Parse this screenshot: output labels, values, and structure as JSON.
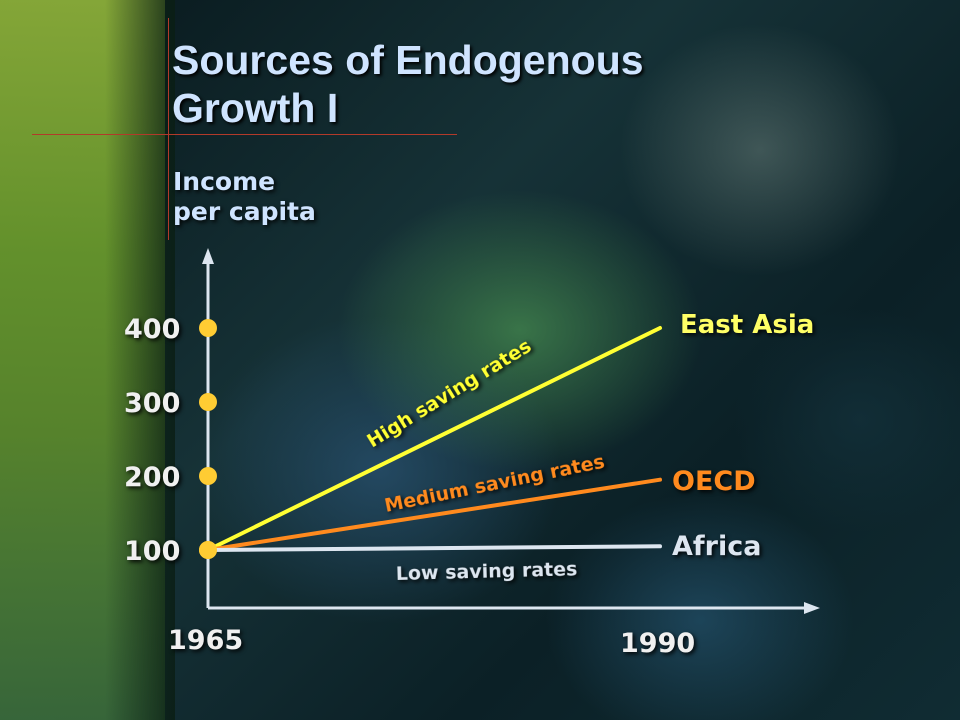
{
  "slide": {
    "title_line1": "Sources of Endogenous",
    "title_line2": "Growth I"
  },
  "chart_data": {
    "type": "line",
    "title": "Sources of Endogenous Growth I",
    "ylabel": [
      "Income",
      "per capita"
    ],
    "x_ticks": [
      "1965",
      "1990"
    ],
    "y_ticks": [
      400,
      300,
      200,
      100
    ],
    "xlim": [
      1965,
      1990
    ],
    "series": [
      {
        "name": "East Asia",
        "annotation": "High saving rates",
        "x": [
          1965,
          1990
        ],
        "y": [
          100,
          400
        ],
        "color": "#ffff33"
      },
      {
        "name": "OECD",
        "annotation": "Medium saving rates",
        "x": [
          1965,
          1990
        ],
        "y": [
          100,
          195
        ],
        "color": "#ff8a1e"
      },
      {
        "name": "Africa",
        "annotation": "Low saving rates",
        "x": [
          1965,
          1990
        ],
        "y": [
          100,
          105
        ],
        "color": "#dde6f0"
      }
    ],
    "colors": {
      "axis": "#dde6f0",
      "tick_dot": "#ffcc33",
      "tick_label": "#f0f0f0"
    }
  }
}
